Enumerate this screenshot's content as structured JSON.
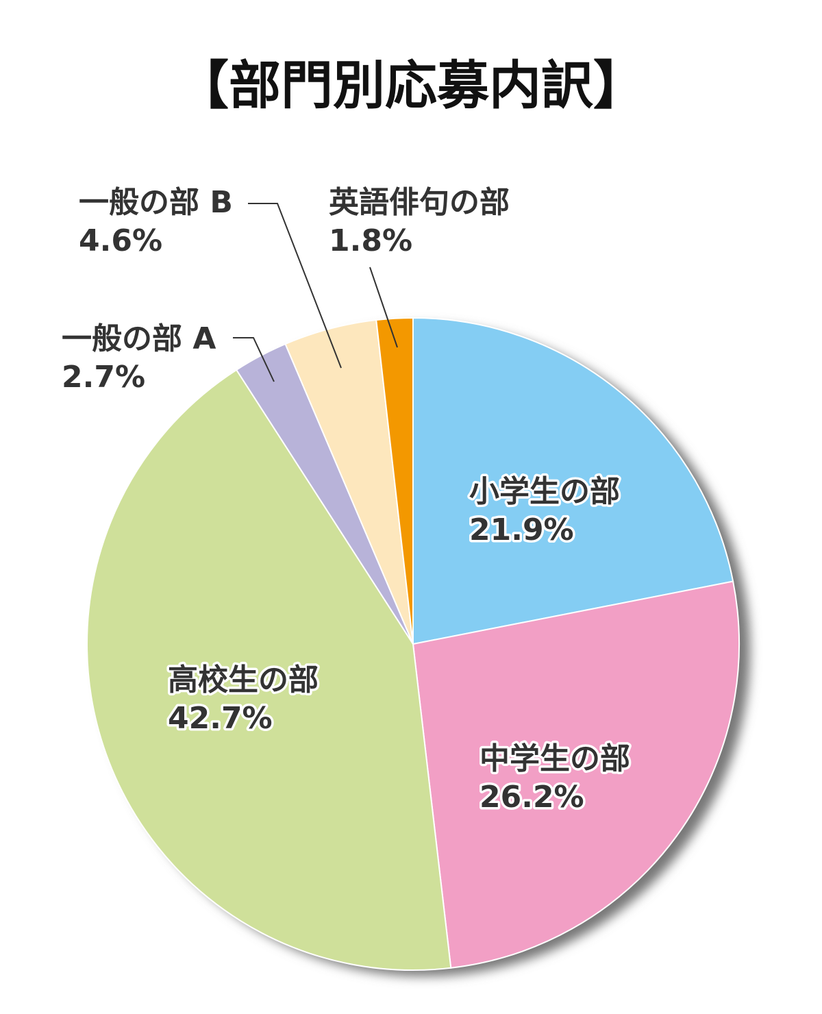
{
  "chart_data": {
    "type": "pie",
    "title": "【部門別応募内訳】",
    "categories": [
      "小学生の部",
      "中学生の部",
      "高校生の部",
      "一般の部 A",
      "一般の部 B",
      "英語俳句の部"
    ],
    "values": [
      21.9,
      26.2,
      42.7,
      2.7,
      4.6,
      1.8
    ],
    "value_labels": [
      "21.9%",
      "26.2%",
      "42.7%",
      "2.7%",
      "4.6%",
      "1.8%"
    ],
    "colors": [
      "#84cdf3",
      "#f29fc5",
      "#cfe09a",
      "#b8b3d9",
      "#fde7bd",
      "#f39800"
    ]
  }
}
